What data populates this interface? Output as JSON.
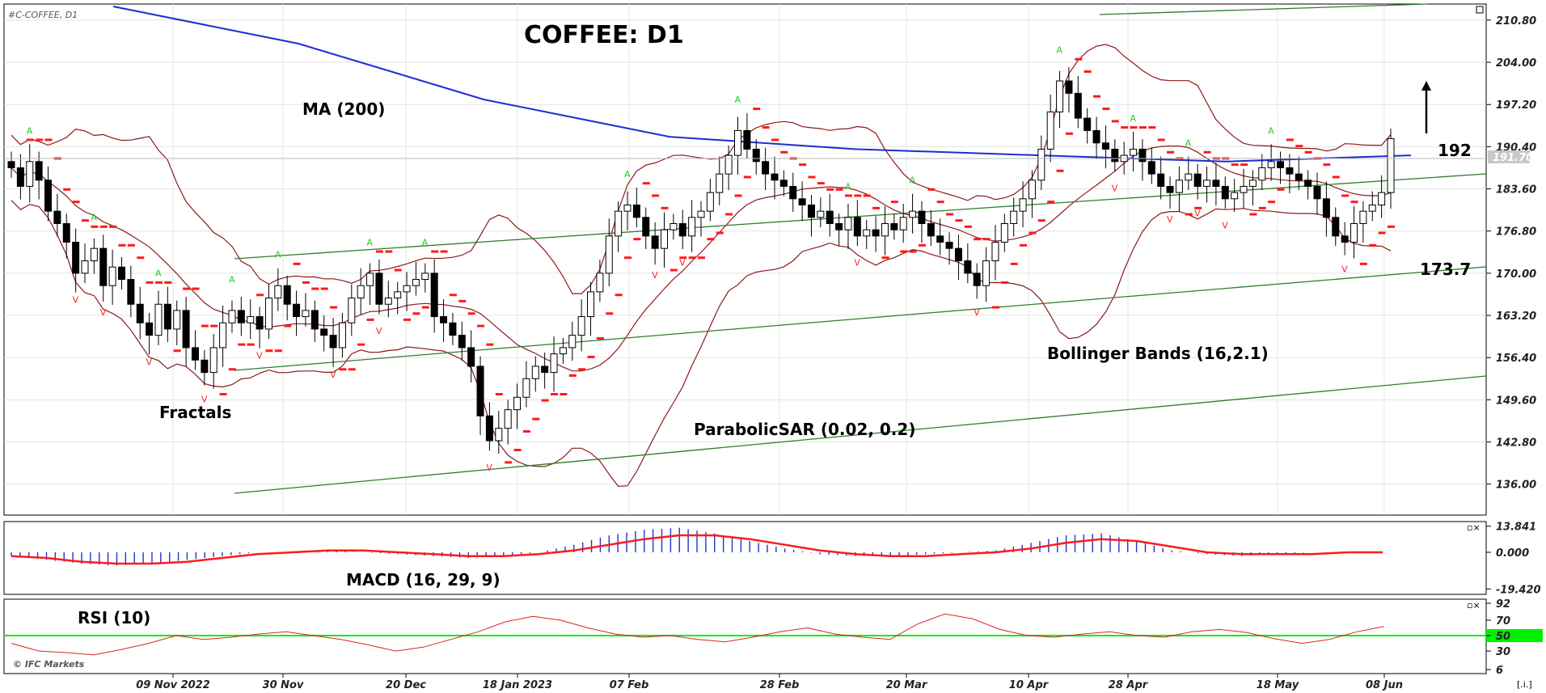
{
  "chart_data": {
    "type": "candlestick",
    "symbol_label": "#C-COFFEE, D1",
    "title": "COFFEE: D1",
    "current_price_label": "191.70",
    "price_axis": {
      "range": [
        131.4,
        213.0
      ],
      "ticks": [
        "210.80",
        "204.00",
        "197.20",
        "190.40",
        "183.60",
        "176.80",
        "170.00",
        "163.20",
        "156.40",
        "149.60",
        "142.80",
        "136.00"
      ]
    },
    "date_ticks": [
      "09 Nov 2022",
      "30 Nov",
      "20 Dec",
      "18 Jan 2023",
      "07 Feb",
      "28 Feb",
      "20 Mar",
      "10 Apr",
      "28 Apr",
      "18 May",
      "08 Jun"
    ],
    "annotations": {
      "ma": "MA (200)",
      "fractals": "Fractals",
      "psar": "ParabolicSAR (0.02, 0.2)",
      "bb": "Bollinger Bands (16,2.1)",
      "macd": "MACD (16, 29, 9)",
      "rsi": "RSI (10)",
      "target_up": "192",
      "target_down": "173.7"
    },
    "macd_axis": {
      "ticks": [
        "13.841",
        "0.000",
        "-19.420"
      ],
      "range": [
        -21,
        15
      ]
    },
    "rsi_axis": {
      "ticks": [
        "92",
        "70",
        "50",
        "30",
        "6"
      ],
      "range": [
        6,
        92
      ]
    },
    "rsi_level": 50,
    "copyright": "© IFC Markets",
    "closes": [
      187,
      184,
      188,
      185,
      180,
      178,
      175,
      170,
      172,
      174,
      168,
      171,
      169,
      165,
      162,
      160,
      165,
      161,
      164,
      158,
      156,
      154,
      158,
      162,
      164,
      162,
      163,
      161,
      166,
      168,
      165,
      163,
      164,
      161,
      160,
      158,
      162,
      166,
      168,
      170,
      165,
      166,
      167,
      168,
      169,
      170,
      163,
      162,
      160,
      158,
      155,
      147,
      143,
      145,
      148,
      150,
      153,
      155,
      154,
      157,
      158,
      160,
      163,
      167,
      170,
      176,
      180,
      181,
      179,
      176,
      174,
      177,
      178,
      176,
      179,
      180,
      183,
      186,
      189,
      193,
      190,
      188,
      186,
      185,
      184,
      182,
      181,
      179,
      180,
      178,
      177,
      179,
      176,
      177,
      176,
      178,
      177,
      179,
      180,
      178,
      176,
      175,
      174,
      172,
      170,
      168,
      172,
      175,
      178,
      180,
      182,
      185,
      190,
      196,
      201,
      199,
      195,
      193,
      191,
      190,
      188,
      189,
      190,
      188,
      186,
      184,
      183,
      185,
      186,
      184,
      185,
      184,
      182,
      183,
      184,
      185,
      187,
      188,
      187,
      186,
      185,
      184,
      182,
      179,
      176,
      175,
      178,
      180,
      181,
      183,
      191.7
    ],
    "ma200": [
      213,
      207,
      198,
      192,
      190,
      189,
      188,
      189
    ],
    "macd": [
      -2,
      -4,
      -6,
      -7,
      -6,
      -4,
      -2,
      0,
      0,
      1,
      0,
      -1,
      -2,
      -3,
      -2,
      0,
      4,
      9,
      12,
      13,
      10,
      6,
      2,
      -1,
      -2,
      -2,
      -1,
      0,
      1,
      5,
      9,
      10,
      6,
      1,
      -1,
      -2,
      -1,
      0,
      0,
      0
    ],
    "macd_signal": [
      -2,
      -3,
      -5,
      -6,
      -6,
      -5,
      -3,
      -1,
      0,
      1,
      1,
      0,
      -1,
      -2,
      -2,
      -1,
      1,
      4,
      7,
      9,
      9,
      7,
      4,
      1,
      -1,
      -2,
      -2,
      -1,
      0,
      2,
      5,
      7,
      6,
      3,
      0,
      -1,
      -1,
      -1,
      0,
      0
    ],
    "rsi": [
      40,
      30,
      28,
      25,
      32,
      40,
      50,
      45,
      48,
      52,
      55,
      50,
      45,
      38,
      30,
      35,
      45,
      55,
      68,
      75,
      70,
      60,
      52,
      48,
      50,
      45,
      42,
      48,
      55,
      60,
      52,
      48,
      45,
      65,
      78,
      72,
      58,
      50,
      48,
      52,
      55,
      50,
      48,
      55,
      58,
      54,
      46,
      40,
      45,
      55,
      62
    ]
  }
}
